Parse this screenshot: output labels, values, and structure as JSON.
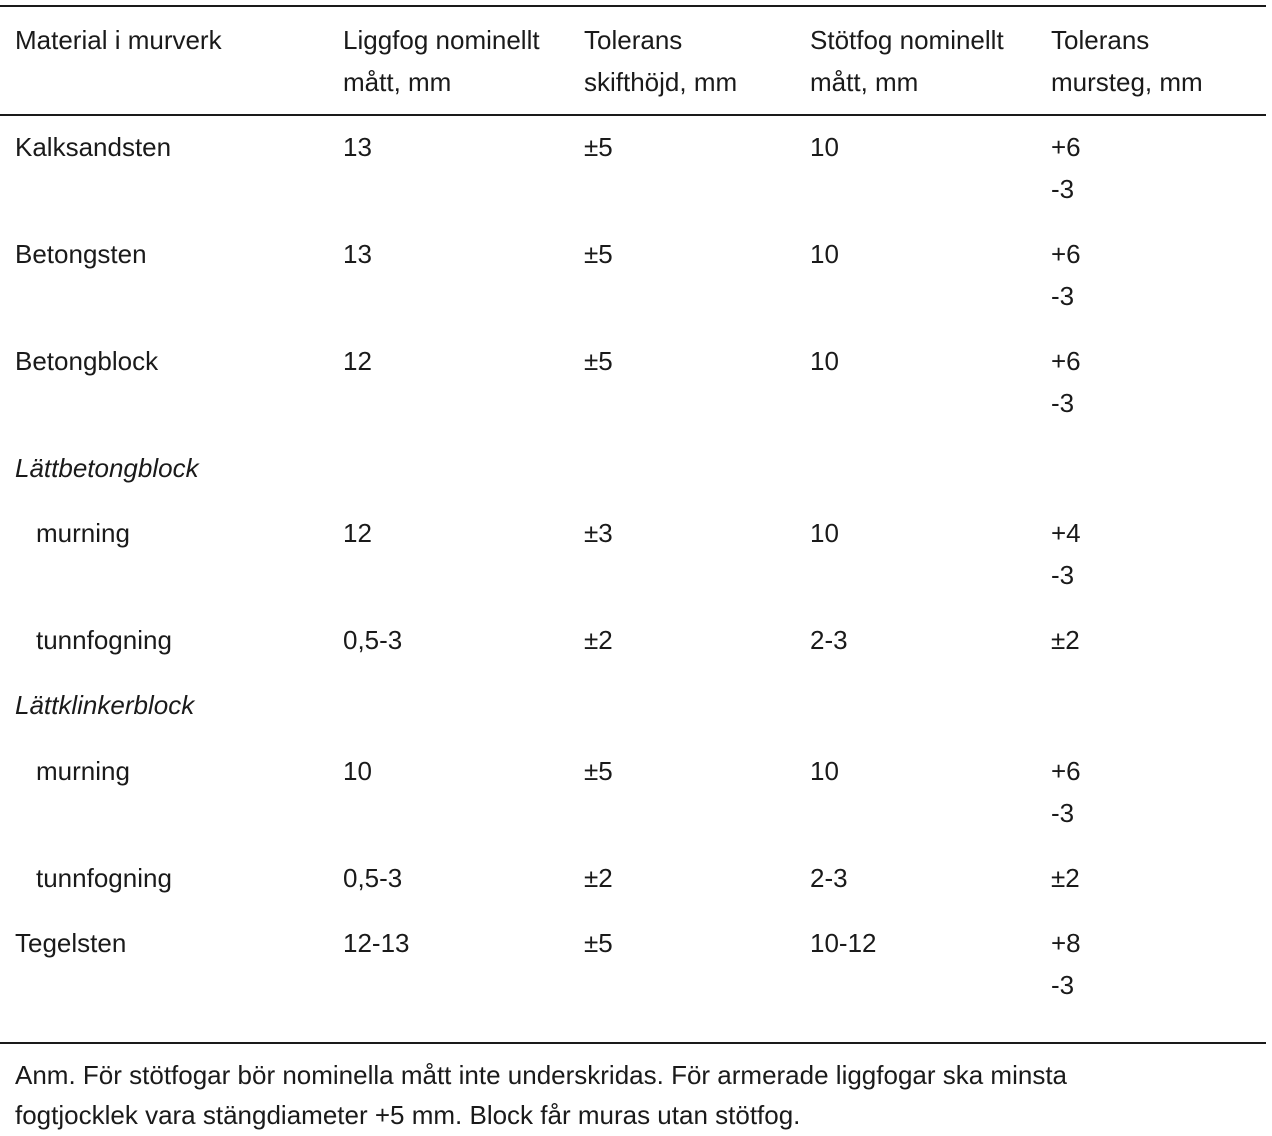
{
  "header": {
    "col1": "Material i murverk",
    "col2_line1": "Liggfog nominellt",
    "col2_line2": "mått, mm",
    "col3_line1": "Tolerans",
    "col3_line2": "skifthöjd, mm",
    "col4_line1": "Stötfog nominellt",
    "col4_line2": "mått, mm",
    "col5_line1": "Tolerans",
    "col5_line2": "mursteg, mm"
  },
  "rows": [
    {
      "material": "Kalksandsten",
      "ligg": "13",
      "tol_skift": "±5",
      "stot": "10",
      "tol_murs_1": "+6",
      "tol_murs_2": "-3"
    },
    {
      "material": "Betongsten",
      "ligg": "13",
      "tol_skift": "±5",
      "stot": "10",
      "tol_murs_1": "+6",
      "tol_murs_2": "-3"
    },
    {
      "material": "Betongblock",
      "ligg": "12",
      "tol_skift": "±5",
      "stot": "10",
      "tol_murs_1": "+6",
      "tol_murs_2": "-3"
    },
    {
      "group": "Lättbetongblock"
    },
    {
      "material": "murning",
      "ligg": "12",
      "tol_skift": "±3",
      "stot": "10",
      "tol_murs_1": "+4",
      "tol_murs_2": "-3"
    },
    {
      "material": "tunnfogning",
      "ligg": "0,5-3",
      "tol_skift": "±2",
      "stot": "2-3",
      "tol_murs_1": "±2",
      "tol_murs_2": ""
    },
    {
      "group": "Lättklinkerblock"
    },
    {
      "material": "murning",
      "ligg": "10",
      "tol_skift": "±5",
      "stot": "10",
      "tol_murs_1": "+6",
      "tol_murs_2": "-3"
    },
    {
      "material": "tunnfogning",
      "ligg": "0,5-3",
      "tol_skift": "±2",
      "stot": "2-3",
      "tol_murs_1": "±2",
      "tol_murs_2": ""
    },
    {
      "material": "Tegelsten",
      "ligg": "12-13",
      "tol_skift": "±5",
      "stot": "10-12",
      "tol_murs_1": "+8",
      "tol_murs_2": "-3"
    }
  ],
  "note_line1": "Anm. För stötfogar bör nominella mått inte underskridas. För armerade liggfogar ska minsta",
  "note_line2": "fogtjocklek vara stängdiameter +5 mm. Block får muras utan stötfog."
}
